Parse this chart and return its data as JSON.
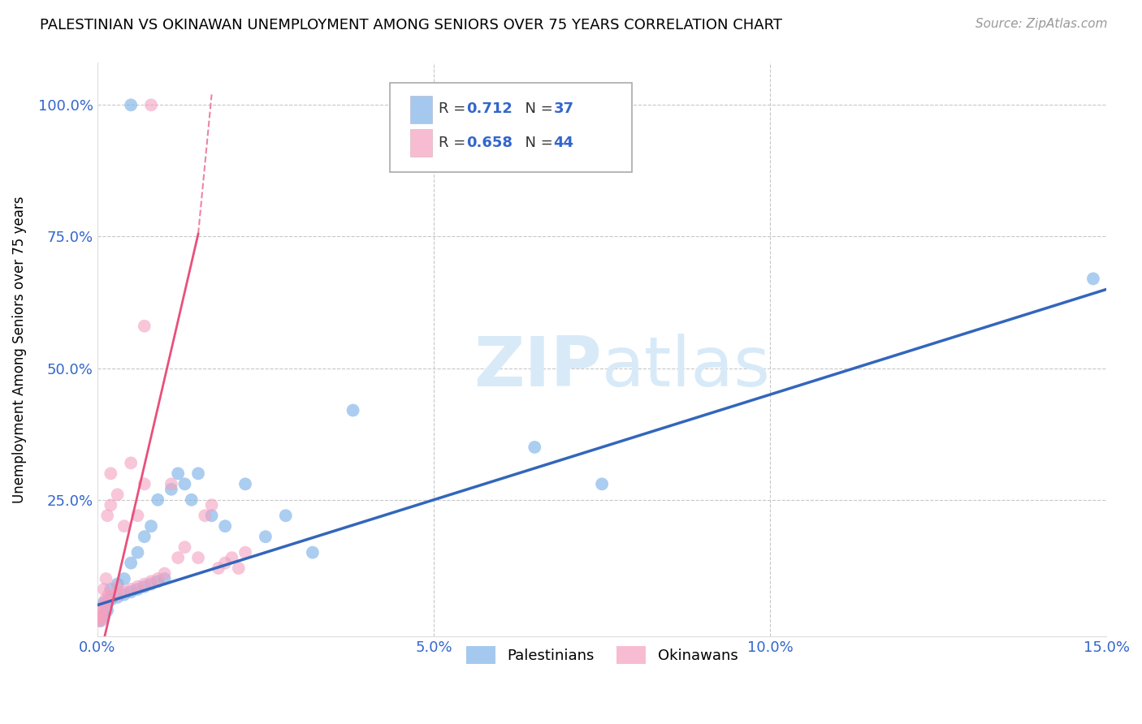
{
  "title": "PALESTINIAN VS OKINAWAN UNEMPLOYMENT AMONG SENIORS OVER 75 YEARS CORRELATION CHART",
  "source": "Source: ZipAtlas.com",
  "ylabel": "Unemployment Among Seniors over 75 years",
  "xlim": [
    0,
    0.15
  ],
  "ylim": [
    -0.01,
    1.08
  ],
  "xticks": [
    0.0,
    0.05,
    0.1,
    0.15
  ],
  "xtick_labels": [
    "0.0%",
    "5.0%",
    "10.0%",
    "15.0%"
  ],
  "yticks": [
    0.0,
    0.25,
    0.5,
    0.75,
    1.0
  ],
  "ytick_labels": [
    "",
    "25.0%",
    "50.0%",
    "75.0%",
    "100.0%"
  ],
  "blue_color": "#7fb3e8",
  "pink_color": "#f4a0c0",
  "blue_line_color": "#3366bb",
  "pink_line_color": "#e8507a",
  "r_blue": "0.712",
  "n_blue": "37",
  "r_pink": "0.658",
  "n_pink": "44",
  "blue_scatter_x": [
    0.0005,
    0.001,
    0.001,
    0.0015,
    0.002,
    0.002,
    0.003,
    0.003,
    0.004,
    0.004,
    0.005,
    0.005,
    0.006,
    0.006,
    0.007,
    0.007,
    0.008,
    0.008,
    0.009,
    0.009,
    0.01,
    0.011,
    0.012,
    0.013,
    0.014,
    0.015,
    0.017,
    0.019,
    0.022,
    0.025,
    0.028,
    0.032,
    0.038,
    0.065,
    0.075,
    0.148,
    0.005
  ],
  "blue_scatter_y": [
    0.02,
    0.03,
    0.055,
    0.04,
    0.06,
    0.08,
    0.065,
    0.09,
    0.07,
    0.1,
    0.075,
    0.13,
    0.08,
    0.15,
    0.085,
    0.18,
    0.09,
    0.2,
    0.095,
    0.25,
    0.1,
    0.27,
    0.3,
    0.28,
    0.25,
    0.3,
    0.22,
    0.2,
    0.28,
    0.18,
    0.22,
    0.15,
    0.42,
    0.35,
    0.28,
    0.67,
    1.0
  ],
  "pink_scatter_x": [
    0.0002,
    0.0003,
    0.0004,
    0.0005,
    0.0006,
    0.0007,
    0.0008,
    0.001,
    0.001,
    0.0012,
    0.0013,
    0.0015,
    0.0015,
    0.0017,
    0.002,
    0.002,
    0.002,
    0.003,
    0.003,
    0.003,
    0.004,
    0.004,
    0.005,
    0.005,
    0.006,
    0.006,
    0.007,
    0.007,
    0.008,
    0.009,
    0.01,
    0.011,
    0.012,
    0.013,
    0.015,
    0.016,
    0.017,
    0.018,
    0.019,
    0.02,
    0.021,
    0.022,
    0.007,
    0.008
  ],
  "pink_scatter_y": [
    0.02,
    0.025,
    0.03,
    0.022,
    0.028,
    0.035,
    0.04,
    0.05,
    0.08,
    0.06,
    0.1,
    0.055,
    0.22,
    0.07,
    0.065,
    0.24,
    0.3,
    0.07,
    0.085,
    0.26,
    0.075,
    0.2,
    0.08,
    0.32,
    0.085,
    0.22,
    0.09,
    0.28,
    0.095,
    0.1,
    0.11,
    0.28,
    0.14,
    0.16,
    0.14,
    0.22,
    0.24,
    0.12,
    0.13,
    0.14,
    0.12,
    0.15,
    0.58,
    1.0
  ],
  "background_color": "#ffffff",
  "grid_color": "#c8c8c8",
  "watermark_color": "#d8eaf8",
  "legend_r_n_color": "#3366cc",
  "tick_color": "#3366cc"
}
